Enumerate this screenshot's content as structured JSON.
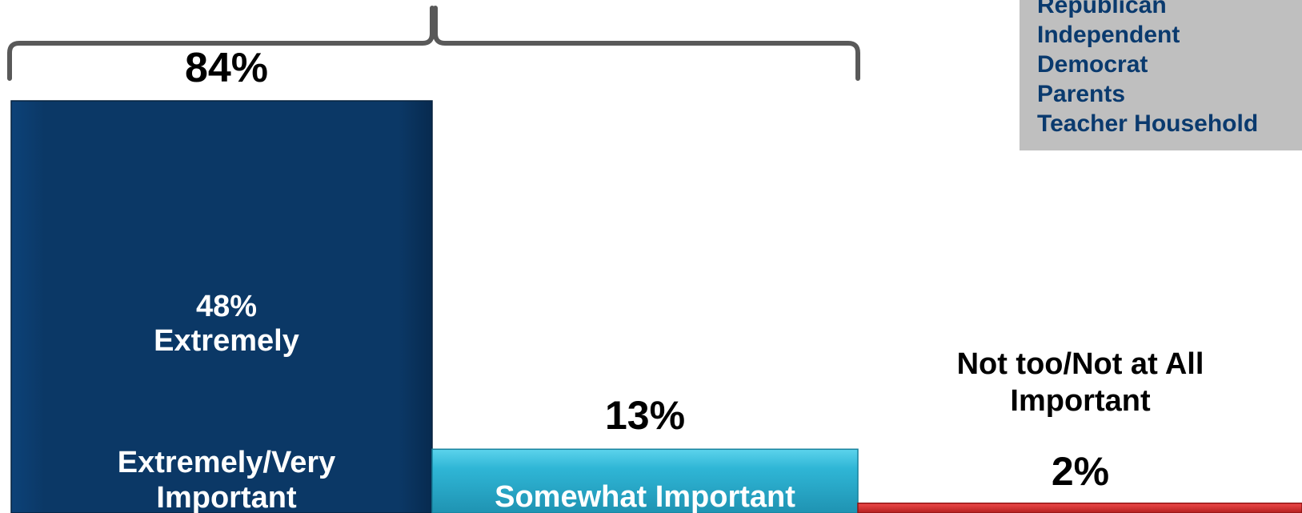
{
  "chart_data": {
    "type": "bar",
    "categories": [
      "Extremely/Very Important",
      "Somewhat Important",
      "Not too/Not at All Important"
    ],
    "values": [
      84,
      13,
      2
    ],
    "value_labels": [
      "84%",
      "13%",
      "2%"
    ],
    "category_labels": [
      [
        "Extremely/Very",
        "Important"
      ],
      [
        "Somewhat Important"
      ],
      [
        "Not too/Not at All",
        "Important"
      ]
    ],
    "inner_label": [
      "48%",
      "Extremely"
    ],
    "inner_value": 48,
    "colors": [
      "#0b3866",
      "#2fb6d6",
      "#d42b2b"
    ],
    "ylim": [
      0,
      84
    ],
    "grid": false,
    "legend": {
      "placement": "top-right",
      "items": [
        "Republican",
        "Independent",
        "Democrat",
        "Parents",
        "Teacher Household"
      ],
      "color": "#0a3a6e",
      "background": "#bfbfbf"
    }
  }
}
